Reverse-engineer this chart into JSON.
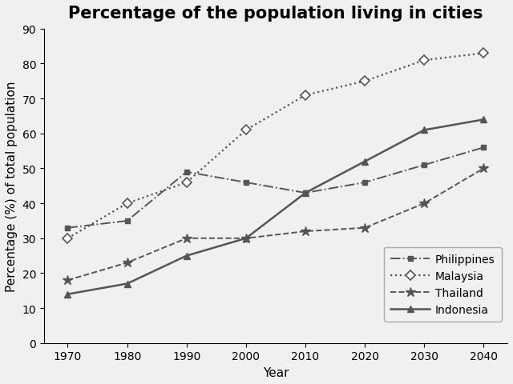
{
  "title": "Percentage of the population living in cities",
  "xlabel": "Year",
  "ylabel": "Percentage (%) of total population",
  "years": [
    1970,
    1980,
    1990,
    2000,
    2010,
    2020,
    2030,
    2040
  ],
  "philippines": [
    33,
    35,
    49,
    46,
    43,
    46,
    51,
    56
  ],
  "malaysia": [
    30,
    40,
    46,
    61,
    71,
    75,
    81,
    83
  ],
  "thailand": [
    18,
    23,
    30,
    30,
    32,
    33,
    40,
    50
  ],
  "indonesia": [
    14,
    17,
    25,
    30,
    43,
    52,
    61,
    64
  ],
  "ylim": [
    0,
    90
  ],
  "yticks": [
    0,
    10,
    20,
    30,
    40,
    50,
    60,
    70,
    80,
    90
  ],
  "line_color": "#555555",
  "bg_color": "#f0f0f0",
  "legend_entries": [
    "Philippines",
    "Malaysia",
    "Thailand",
    "Indonesia"
  ],
  "title_fontsize": 15,
  "axis_label_fontsize": 11,
  "tick_fontsize": 10,
  "legend_fontsize": 10
}
